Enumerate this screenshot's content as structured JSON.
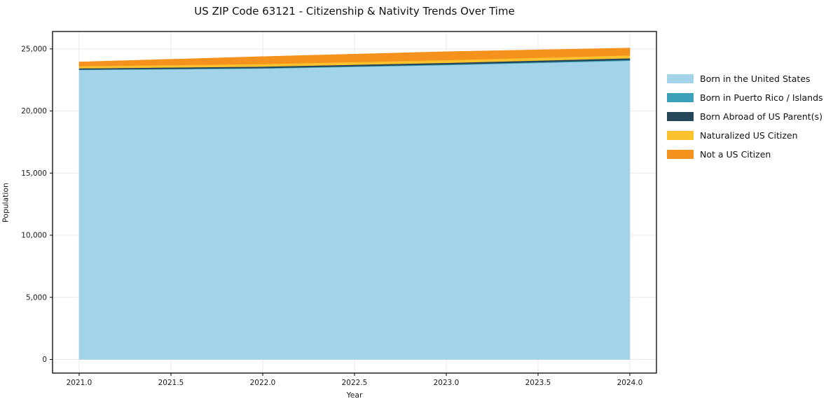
{
  "title": "US ZIP Code 63121 - Citizenship & Nativity Trends Over Time",
  "chart_data": {
    "type": "area",
    "stacked": true,
    "title": "US ZIP Code 63121 - Citizenship & Nativity Trends Over Time",
    "xlabel": "Year",
    "ylabel": "Population",
    "x": [
      2021,
      2022,
      2023,
      2024
    ],
    "series": [
      {
        "name": "Born in the United States",
        "color": "#a2d3e9",
        "values": [
          23310,
          23420,
          23700,
          24050
        ]
      },
      {
        "name": "Born in Puerto Rico / Islands",
        "color": "#3aa1b8",
        "values": [
          30,
          40,
          50,
          60
        ]
      },
      {
        "name": "Born Abroad of US Parent(s)",
        "color": "#26465a",
        "values": [
          100,
          120,
          130,
          140
        ]
      },
      {
        "name": "Naturalized US Citizen",
        "color": "#fbc22d",
        "values": [
          170,
          210,
          220,
          230
        ]
      },
      {
        "name": "Not a US Citizen",
        "color": "#f5921e",
        "values": [
          340,
          590,
          680,
          590
        ]
      }
    ],
    "x_tick_labels": [
      "2021.0",
      "2021.5",
      "2022.0",
      "2022.5",
      "2023.0",
      "2023.5",
      "2024.0"
    ],
    "x_tick_values": [
      2021.0,
      2021.5,
      2022.0,
      2022.5,
      2023.0,
      2023.5,
      2024.0
    ],
    "y_tick_labels": [
      "0",
      "5,000",
      "10,000",
      "15,000",
      "20,000",
      "25,000"
    ],
    "y_tick_values": [
      0,
      5000,
      10000,
      15000,
      20000,
      25000
    ],
    "xlim": [
      2020.855,
      2024.145
    ],
    "ylim": [
      -1100,
      26400
    ],
    "grid": true,
    "gridline_color": "#e9e9e9",
    "frame_color": "#000000",
    "legend_position": "right"
  }
}
